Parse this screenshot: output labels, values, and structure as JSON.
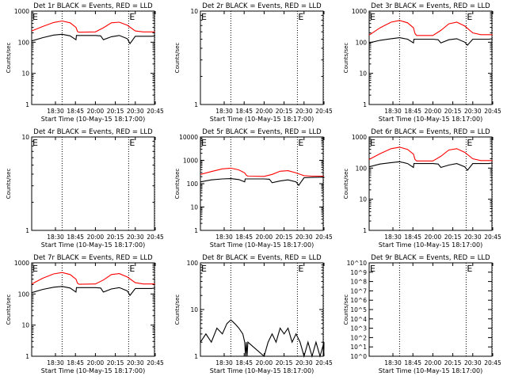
{
  "chart_data": [
    {
      "type": "line",
      "title": "Det 1r BLACK = Events, RED = LLD",
      "xlabel": "Start Time (10-May-15 18:17:00)",
      "ylabel": "Counts/sec",
      "yscale": "log",
      "ylim": [
        1,
        1000
      ],
      "xlim": [
        "18:17",
        "20:55"
      ],
      "x_ticks": [
        "18:30",
        "18:45",
        "20:00",
        "20:15",
        "20:30",
        "20:45"
      ],
      "y_ticks": [
        "1",
        "10",
        "100",
        "1000"
      ],
      "markers": [
        "E",
        "E"
      ],
      "marker_times": [
        "18:17",
        "20:25"
      ],
      "dotted_lines": [
        "18:35",
        "20:25",
        "20:52"
      ],
      "series": [
        {
          "name": "LLD",
          "color": "#ff0000",
          "x": [
            "18:17",
            "18:23",
            "18:29",
            "18:35",
            "18:41",
            "18:47",
            "18:53",
            "18:59",
            "20:00",
            "20:06",
            "20:12",
            "20:18",
            "20:24",
            "20:30",
            "20:36",
            "20:42",
            "20:48",
            "20:54"
          ],
          "values": [
            230,
            320,
            430,
            480,
            420,
            300,
            220,
            210,
            215,
            290,
            420,
            440,
            350,
            230,
            215,
            215,
            215,
            215
          ]
        },
        {
          "name": "Events",
          "color": "#000000",
          "x": [
            "18:17",
            "18:23",
            "18:29",
            "18:35",
            "18:41",
            "18:47",
            "18:49",
            "18:53",
            "18:59",
            "20:00",
            "20:04",
            "20:06",
            "20:12",
            "20:18",
            "20:24",
            "20:26",
            "20:30",
            "20:36",
            "20:42",
            "20:48",
            "20:54"
          ],
          "values": [
            110,
            140,
            170,
            180,
            160,
            120,
            165,
            165,
            165,
            165,
            160,
            120,
            150,
            165,
            130,
            90,
            155,
            155,
            155,
            160,
            160
          ]
        }
      ]
    },
    {
      "type": "line",
      "title": "Det 2r BLACK = Events, RED = LLD",
      "xlabel": "Start Time (10-May-15 18:17:00)",
      "ylabel": "Counts/sec",
      "yscale": "log",
      "ylim": [
        1,
        10
      ],
      "xlim": [
        "18:17",
        "20:55"
      ],
      "x_ticks": [
        "18:30",
        "18:45",
        "20:00",
        "20:15",
        "20:30",
        "20:45"
      ],
      "y_ticks": [
        "1",
        "10"
      ],
      "markers": [
        "E",
        "E"
      ],
      "marker_times": [
        "18:17",
        "20:25"
      ],
      "dotted_lines": [
        "18:35",
        "20:25",
        "20:52"
      ],
      "series": []
    },
    {
      "type": "line",
      "title": "Det 3r BLACK = Events, RED = LLD",
      "xlabel": "Start Time (10-May-15 18:17:00)",
      "ylabel": "Counts/sec",
      "yscale": "log",
      "ylim": [
        1,
        1000
      ],
      "xlim": [
        "18:17",
        "20:55"
      ],
      "x_ticks": [
        "18:30",
        "18:45",
        "20:00",
        "20:15",
        "20:30",
        "20:45"
      ],
      "y_ticks": [
        "1",
        "10",
        "100",
        "1000"
      ],
      "markers": [
        "E",
        "E"
      ],
      "marker_times": [
        "18:17",
        "20:25"
      ],
      "dotted_lines": [
        "18:35",
        "20:25",
        "20:52"
      ],
      "series": [
        {
          "name": "LLD",
          "color": "#ff0000",
          "x": [
            "18:17",
            "18:23",
            "18:29",
            "18:35",
            "18:41",
            "18:47",
            "18:53",
            "18:59",
            "20:00",
            "20:06",
            "20:12",
            "20:18",
            "20:24",
            "20:30",
            "20:36",
            "20:42",
            "20:48",
            "20:54"
          ],
          "values": [
            170,
            290,
            440,
            500,
            420,
            290,
            190,
            165,
            165,
            240,
            390,
            440,
            330,
            200,
            175,
            175,
            175,
            175
          ]
        },
        {
          "name": "Events",
          "color": "#000000",
          "x": [
            "18:17",
            "18:23",
            "18:29",
            "18:35",
            "18:41",
            "18:47",
            "18:49",
            "18:53",
            "18:59",
            "20:00",
            "20:04",
            "20:06",
            "20:12",
            "20:18",
            "20:24",
            "20:26",
            "20:30",
            "20:36",
            "20:42",
            "20:48",
            "20:54"
          ],
          "values": [
            95,
            115,
            130,
            140,
            125,
            95,
            125,
            125,
            125,
            125,
            120,
            95,
            120,
            130,
            100,
            80,
            125,
            125,
            125,
            130,
            130
          ]
        }
      ]
    },
    {
      "type": "line",
      "title": "Det 4r BLACK = Events, RED = LLD",
      "xlabel": "Start Time (10-May-15 18:17:00)",
      "ylabel": "Counts/sec",
      "yscale": "log",
      "ylim": [
        1,
        10
      ],
      "xlim": [
        "18:17",
        "20:55"
      ],
      "x_ticks": [
        "18:30",
        "18:45",
        "20:00",
        "20:15",
        "20:30",
        "20:45"
      ],
      "y_ticks": [
        "1",
        "10"
      ],
      "markers": [
        "E",
        "E"
      ],
      "marker_times": [
        "18:17",
        "20:25"
      ],
      "dotted_lines": [
        "18:35",
        "20:25",
        "20:52"
      ],
      "series": []
    },
    {
      "type": "line",
      "title": "Det 5r BLACK = Events, RED = LLD",
      "xlabel": "Start Time (10-May-15 18:17:00)",
      "ylabel": "Counts/sec",
      "yscale": "log",
      "ylim": [
        1,
        10000
      ],
      "xlim": [
        "18:17",
        "20:55"
      ],
      "x_ticks": [
        "18:30",
        "18:45",
        "20:00",
        "20:15",
        "20:30",
        "20:45"
      ],
      "y_ticks": [
        "1",
        "10",
        "100",
        "1000",
        "10000"
      ],
      "markers": [
        "E",
        "E"
      ],
      "marker_times": [
        "18:17",
        "20:25"
      ],
      "dotted_lines": [
        "18:35",
        "20:25",
        "20:52"
      ],
      "series": [
        {
          "name": "LLD",
          "color": "#ff0000",
          "x": [
            "18:17",
            "18:23",
            "18:29",
            "18:35",
            "18:41",
            "18:47",
            "18:53",
            "18:59",
            "20:00",
            "20:06",
            "20:12",
            "20:18",
            "20:24",
            "20:30",
            "20:36",
            "20:42",
            "20:48",
            "20:54"
          ],
          "values": [
            250,
            330,
            430,
            460,
            390,
            290,
            230,
            210,
            205,
            250,
            340,
            360,
            290,
            220,
            210,
            210,
            210,
            210
          ]
        },
        {
          "name": "Events",
          "color": "#000000",
          "x": [
            "18:17",
            "18:23",
            "18:29",
            "18:35",
            "18:41",
            "18:47",
            "18:49",
            "18:53",
            "18:59",
            "20:00",
            "20:04",
            "20:06",
            "20:12",
            "20:18",
            "20:24",
            "20:26",
            "20:30",
            "20:36",
            "20:42",
            "20:48",
            "20:54"
          ],
          "values": [
            120,
            145,
            160,
            165,
            150,
            120,
            160,
            160,
            160,
            160,
            155,
            110,
            130,
            145,
            120,
            85,
            180,
            185,
            190,
            190,
            195
          ]
        }
      ]
    },
    {
      "type": "line",
      "title": "Det 6r BLACK = Events, RED = LLD",
      "xlabel": "Start Time (10-May-15 18:17:00)",
      "ylabel": "Counts/sec",
      "yscale": "log",
      "ylim": [
        1,
        1000
      ],
      "xlim": [
        "18:17",
        "20:55"
      ],
      "x_ticks": [
        "18:30",
        "18:45",
        "20:00",
        "20:15",
        "20:30",
        "20:45"
      ],
      "y_ticks": [
        "1",
        "10",
        "100",
        "1000"
      ],
      "markers": [
        "E",
        "E"
      ],
      "marker_times": [
        "18:17",
        "20:25"
      ],
      "dotted_lines": [
        "18:35",
        "20:25",
        "20:52"
      ],
      "series": [
        {
          "name": "LLD",
          "color": "#ff0000",
          "x": [
            "18:17",
            "18:23",
            "18:29",
            "18:35",
            "18:41",
            "18:47",
            "18:53",
            "18:59",
            "20:00",
            "20:06",
            "20:12",
            "20:18",
            "20:24",
            "20:30",
            "20:36",
            "20:42",
            "20:48",
            "20:54"
          ],
          "values": [
            190,
            290,
            420,
            470,
            400,
            280,
            190,
            170,
            170,
            240,
            380,
            420,
            320,
            200,
            175,
            175,
            175,
            175
          ]
        },
        {
          "name": "Events",
          "color": "#000000",
          "x": [
            "18:17",
            "18:23",
            "18:29",
            "18:35",
            "18:41",
            "18:47",
            "18:49",
            "18:53",
            "18:59",
            "20:00",
            "20:04",
            "20:06",
            "20:12",
            "20:18",
            "20:24",
            "20:26",
            "20:30",
            "20:36",
            "20:42",
            "20:48",
            "20:54"
          ],
          "values": [
            110,
            135,
            150,
            160,
            140,
            105,
            140,
            140,
            140,
            140,
            135,
            105,
            125,
            140,
            110,
            85,
            140,
            140,
            140,
            145,
            145
          ]
        }
      ]
    },
    {
      "type": "line",
      "title": "Det 7r BLACK = Events, RED = LLD",
      "xlabel": "Start Time (10-May-15 18:17:00)",
      "ylabel": "Counts/sec",
      "yscale": "log",
      "ylim": [
        1,
        1000
      ],
      "xlim": [
        "18:17",
        "20:55"
      ],
      "x_ticks": [
        "18:30",
        "18:45",
        "20:00",
        "20:15",
        "20:30",
        "20:45"
      ],
      "y_ticks": [
        "1",
        "10",
        "100",
        "1000"
      ],
      "markers": [
        "E",
        "E"
      ],
      "marker_times": [
        "18:17",
        "20:25"
      ],
      "dotted_lines": [
        "18:35",
        "20:25",
        "20:52"
      ],
      "series": [
        {
          "name": "LLD",
          "color": "#ff0000",
          "x": [
            "18:17",
            "18:23",
            "18:29",
            "18:35",
            "18:41",
            "18:47",
            "18:53",
            "18:59",
            "20:00",
            "20:06",
            "20:12",
            "20:18",
            "20:24",
            "20:30",
            "20:36",
            "20:42",
            "20:48",
            "20:54"
          ],
          "values": [
            210,
            320,
            440,
            490,
            420,
            300,
            220,
            205,
            210,
            280,
            420,
            450,
            350,
            230,
            210,
            210,
            210,
            210
          ]
        },
        {
          "name": "Events",
          "color": "#000000",
          "x": [
            "18:17",
            "18:23",
            "18:29",
            "18:35",
            "18:41",
            "18:47",
            "18:49",
            "18:53",
            "18:59",
            "20:00",
            "20:04",
            "20:06",
            "20:12",
            "20:18",
            "20:24",
            "20:26",
            "20:30",
            "20:36",
            "20:42",
            "20:48",
            "20:54"
          ],
          "values": [
            110,
            140,
            165,
            175,
            155,
            115,
            160,
            160,
            160,
            160,
            155,
            115,
            145,
            160,
            125,
            90,
            150,
            150,
            150,
            155,
            155
          ]
        }
      ]
    },
    {
      "type": "line",
      "title": "Det 8r BLACK = Events, RED = LLD",
      "xlabel": "Start Time (10-May-15 18:17:00)",
      "ylabel": "Counts/sec",
      "yscale": "log",
      "ylim": [
        1,
        100
      ],
      "xlim": [
        "18:17",
        "20:55"
      ],
      "x_ticks": [
        "18:30",
        "18:45",
        "20:00",
        "20:15",
        "20:30",
        "20:45"
      ],
      "y_ticks": [
        "1",
        "10",
        "100"
      ],
      "markers": [
        "E",
        "E"
      ],
      "marker_times": [
        "18:17",
        "20:25"
      ],
      "dotted_lines": [
        "18:35",
        "20:25",
        "20:52"
      ],
      "series": [
        {
          "name": "Events",
          "color": "#000000",
          "x": [
            "18:17",
            "18:20",
            "18:23",
            "18:26",
            "18:29",
            "18:32",
            "18:35",
            "18:38",
            "18:41",
            "18:44",
            "18:47",
            "18:50",
            "18:53",
            "18:56",
            "18:59",
            "20:00",
            "20:03",
            "20:06",
            "20:09",
            "20:12",
            "20:15",
            "20:18",
            "20:21",
            "20:24",
            "20:27",
            "20:30",
            "20:33",
            "20:36",
            "20:39",
            "20:42",
            "20:45",
            "20:48",
            "20:51",
            "20:54"
          ],
          "values": [
            2,
            3,
            2,
            4,
            3,
            5,
            6,
            5,
            4,
            3,
            2,
            1,
            2,
            1,
            2,
            1,
            2,
            3,
            2,
            4,
            3,
            4,
            2,
            3,
            2,
            1,
            2,
            1,
            2,
            1,
            2,
            1,
            2,
            1
          ]
        }
      ]
    },
    {
      "type": "line",
      "title": "Det 9r BLACK = Events, RED = LLD",
      "xlabel": "Start Time (10-May-15 18:17:00)",
      "ylabel": "Counts/sec",
      "yscale": "log",
      "ylim": [
        1,
        10000000000.0
      ],
      "xlim": [
        "18:17",
        "20:55"
      ],
      "x_ticks": [
        "18:30",
        "18:45",
        "20:00",
        "20:15",
        "20:30",
        "20:45"
      ],
      "y_ticks": [
        "10^0",
        "10^1",
        "10^2",
        "10^3",
        "10^4",
        "10^5",
        "10^6",
        "10^7",
        "10^8",
        "10^9",
        "10^10"
      ],
      "markers": [
        "E",
        "E"
      ],
      "marker_times": [
        "18:17",
        "20:25"
      ],
      "dotted_lines": [
        "18:35",
        "20:25",
        "20:52"
      ],
      "series": []
    }
  ]
}
